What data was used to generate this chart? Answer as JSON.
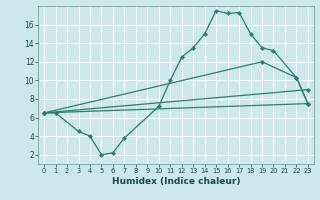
{
  "xlabel": "Humidex (Indice chaleur)",
  "bg_color": "#cce8e8",
  "grid_color": "#ffffff",
  "line_color": "#2e7d6e",
  "xlim": [
    -0.5,
    23.5
  ],
  "ylim": [
    1,
    18
  ],
  "yticks": [
    2,
    4,
    6,
    8,
    10,
    12,
    14,
    16
  ],
  "xticks": [
    0,
    1,
    2,
    3,
    4,
    5,
    6,
    7,
    8,
    9,
    10,
    11,
    12,
    13,
    14,
    15,
    16,
    17,
    18,
    19,
    20,
    21,
    22,
    23
  ],
  "lines": [
    {
      "x": [
        0,
        1,
        3,
        4,
        5,
        6,
        7,
        10,
        11,
        12,
        13,
        14,
        15,
        16,
        17,
        18,
        19,
        20,
        22,
        23
      ],
      "y": [
        6.5,
        6.5,
        4.5,
        4.0,
        2.0,
        2.2,
        3.8,
        7.2,
        10.0,
        12.5,
        13.5,
        15.0,
        17.5,
        17.2,
        17.3,
        15.0,
        13.5,
        13.2,
        10.3,
        7.5
      ]
    },
    {
      "x": [
        0,
        23
      ],
      "y": [
        6.5,
        7.5
      ]
    },
    {
      "x": [
        0,
        19,
        22,
        23
      ],
      "y": [
        6.5,
        12.0,
        10.3,
        7.5
      ]
    },
    {
      "x": [
        0,
        23
      ],
      "y": [
        6.5,
        9.0
      ]
    }
  ]
}
